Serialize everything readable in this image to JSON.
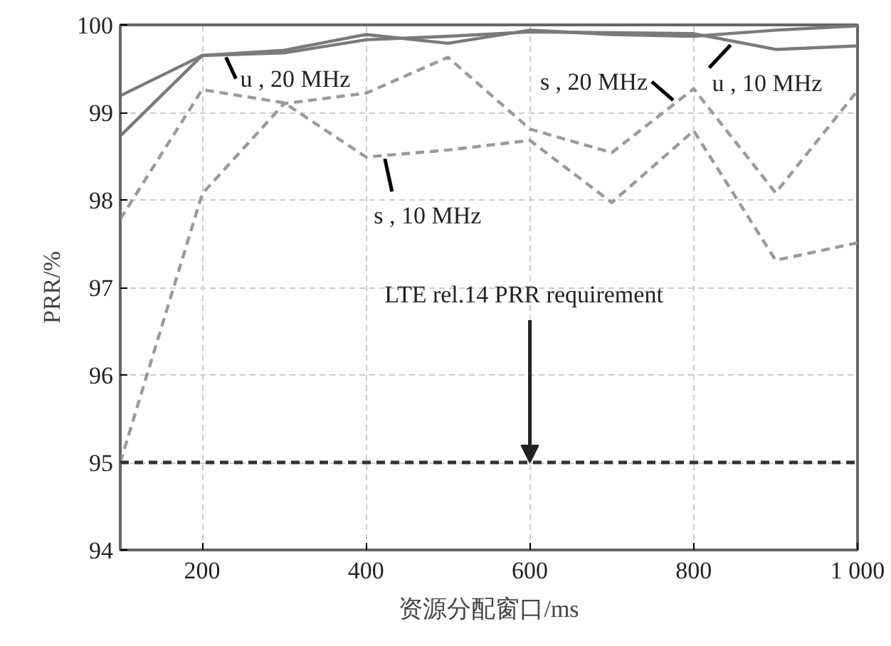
{
  "chart_data": {
    "type": "line",
    "xlabel": "资源分配窗口/ms",
    "ylabel": "PRR/%",
    "x": [
      100,
      200,
      300,
      400,
      500,
      600,
      700,
      800,
      900,
      1000
    ],
    "series": [
      {
        "color": "#7a7a7a",
        "line_style": "solid",
        "values": [
          99.19,
          99.65,
          99.71,
          99.89,
          99.79,
          99.94,
          99.89,
          99.87,
          99.94,
          99.99
        ]
      },
      {
        "color": "#7a7a7a",
        "line_style": "solid",
        "values": [
          98.73,
          99.65,
          99.68,
          99.83,
          99.87,
          99.92,
          99.91,
          99.9,
          99.72,
          99.76
        ]
      },
      {
        "color": "#9a9a9a",
        "line_style": "dashed",
        "values": [
          95.0,
          98.07,
          99.1,
          99.22,
          99.63,
          98.81,
          98.54,
          99.27,
          98.08,
          99.25
        ]
      },
      {
        "color": "#9a9a9a",
        "line_style": "dashed",
        "values": [
          97.78,
          99.26,
          99.11,
          98.49,
          98.57,
          98.68,
          97.97,
          98.79,
          97.31,
          97.51
        ]
      }
    ],
    "ref_lines": [
      {
        "axis": "y",
        "value": 95,
        "color": "#333333",
        "line_style": "dashed"
      }
    ],
    "annotations": [
      {
        "text": "u , 20 MHz",
        "x": 229,
        "y": 99.63
      },
      {
        "text": "s , 10 MHz",
        "x": 423,
        "y": 98.47
      },
      {
        "text": "s , 20 MHz",
        "x": 775,
        "y": 99.14
      },
      {
        "text": "u , 10 MHz",
        "x": 845,
        "y": 99.77
      },
      {
        "text": "LTE rel.14  PRR  requirement",
        "x": 600,
        "y": 95
      }
    ],
    "xlim": [
      100,
      1000
    ],
    "ylim": [
      94,
      100
    ],
    "xticks": [
      200,
      400,
      600,
      800,
      {
        "value": 1000,
        "label": "1 000"
      }
    ],
    "yticks": [
      94,
      95,
      96,
      97,
      98,
      99,
      100
    ],
    "grid": true,
    "marker": "none"
  }
}
